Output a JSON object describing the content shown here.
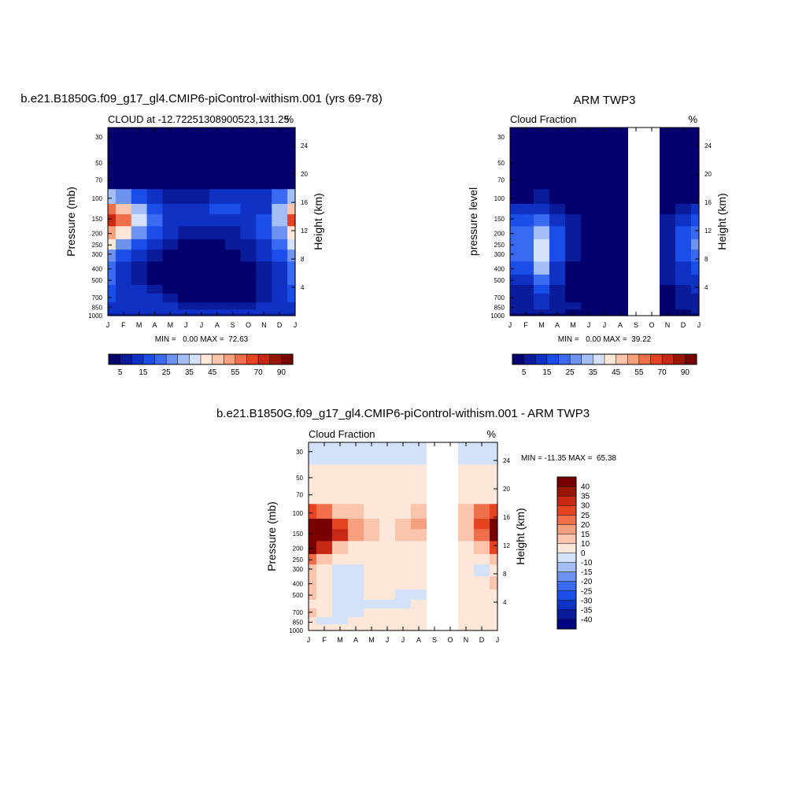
{
  "chart_data": [
    {
      "type": "heatmap",
      "title": "b.e21.B1850G.f09_g17_gl4.CMIP6-piControl-withism.001 (yrs 69-78)",
      "left_subtitle": "CLOUD at -12.72251308900523,131.25",
      "right_subtitle": "%",
      "ylabel": "Pressure (mb)",
      "ylabel_right": "Height (km)",
      "x_ticks": [
        "J",
        "F",
        "M",
        "A",
        "M",
        "J",
        "J",
        "A",
        "S",
        "O",
        "N",
        "D",
        "J"
      ],
      "y_ticks": [
        30,
        50,
        70,
        100,
        150,
        200,
        250,
        300,
        400,
        500,
        700,
        850,
        1000
      ],
      "y_ticks_right": [
        24,
        20,
        16,
        12,
        8,
        4
      ],
      "ylim": [
        1000,
        25
      ],
      "min_max_text": "MIN =   0.00 MAX =  72.63",
      "colorbar": {
        "orientation": "horizontal",
        "labels": [
          "5",
          "15",
          "25",
          "35",
          "45",
          "55",
          "70",
          "90"
        ]
      },
      "x": [
        "Jan",
        "Feb",
        "Mar",
        "Apr",
        "May",
        "Jun",
        "Jul",
        "Aug",
        "Sep",
        "Oct",
        "Nov",
        "Dec",
        "Jan"
      ],
      "y": [
        25,
        30,
        50,
        70,
        100,
        125,
        150,
        200,
        250,
        300,
        400,
        500,
        600,
        700,
        850,
        925,
        1000
      ],
      "z": [
        [
          1,
          1,
          1,
          1,
          1,
          1,
          1,
          1,
          1,
          1,
          1,
          1,
          1
        ],
        [
          1,
          1,
          1,
          1,
          1,
          1,
          1,
          1,
          1,
          1,
          1,
          1,
          1
        ],
        [
          1,
          1,
          1,
          1,
          1,
          1,
          1,
          1,
          1,
          1,
          1,
          1,
          1
        ],
        [
          2,
          2,
          2,
          2,
          2,
          2,
          2,
          2,
          2,
          2,
          2,
          2,
          2
        ],
        [
          30,
          25,
          15,
          10,
          6,
          5,
          8,
          12,
          12,
          10,
          10,
          22,
          30
        ],
        [
          58,
          45,
          30,
          18,
          12,
          10,
          12,
          15,
          15,
          14,
          14,
          30,
          48
        ],
        [
          72,
          58,
          38,
          22,
          14,
          10,
          12,
          14,
          14,
          14,
          18,
          34,
          60
        ],
        [
          54,
          44,
          28,
          16,
          10,
          8,
          8,
          9,
          9,
          12,
          16,
          28,
          44
        ],
        [
          40,
          28,
          16,
          10,
          6,
          4,
          4,
          4,
          5,
          8,
          12,
          22,
          36
        ],
        [
          28,
          18,
          10,
          6,
          3,
          2,
          2,
          2,
          3,
          6,
          10,
          18,
          28
        ],
        [
          24,
          14,
          8,
          4,
          2,
          1,
          1,
          1,
          2,
          4,
          8,
          14,
          24
        ],
        [
          20,
          12,
          8,
          4,
          2,
          1,
          1,
          1,
          1,
          3,
          6,
          12,
          20
        ],
        [
          18,
          12,
          10,
          6,
          3,
          1,
          1,
          1,
          1,
          2,
          5,
          10,
          18
        ],
        [
          16,
          14,
          12,
          10,
          6,
          2,
          1,
          1,
          1,
          3,
          6,
          10,
          16
        ],
        [
          12,
          12,
          12,
          14,
          12,
          8,
          6,
          6,
          6,
          8,
          10,
          12,
          12
        ],
        [
          10,
          10,
          10,
          12,
          12,
          12,
          10,
          10,
          10,
          10,
          10,
          10,
          10
        ],
        [
          6,
          6,
          6,
          6,
          6,
          6,
          6,
          6,
          6,
          6,
          6,
          6,
          6
        ]
      ]
    },
    {
      "type": "heatmap",
      "title": "ARM TWP3",
      "left_subtitle": "Cloud Fraction",
      "right_subtitle": "%",
      "ylabel": "pressure level",
      "ylabel_right": "Height (km)",
      "x_ticks": [
        "J",
        "F",
        "M",
        "A",
        "M",
        "J",
        "J",
        "A",
        "S",
        "O",
        "N",
        "D",
        "J"
      ],
      "y_ticks": [
        30,
        50,
        70,
        100,
        150,
        200,
        250,
        300,
        400,
        500,
        700,
        850,
        1000
      ],
      "y_ticks_right": [
        24,
        20,
        16,
        12,
        8,
        4
      ],
      "ylim": [
        1000,
        25
      ],
      "missing_months": [
        "Sep",
        "Oct"
      ],
      "min_max_text": "MIN =   0.00 MAX =  39.22",
      "colorbar": {
        "orientation": "horizontal",
        "labels": [
          "5",
          "15",
          "25",
          "35",
          "45",
          "55",
          "70",
          "90"
        ]
      },
      "x": [
        "Jan",
        "Feb",
        "Mar",
        "Apr",
        "May",
        "Jun",
        "Jul",
        "Aug",
        "Sep",
        "Oct",
        "Nov",
        "Dec",
        "Jan"
      ],
      "y": [
        25,
        30,
        50,
        70,
        100,
        125,
        150,
        200,
        250,
        300,
        400,
        500,
        600,
        700,
        850,
        925,
        1000
      ],
      "z": [
        [
          1,
          1,
          1,
          1,
          1,
          1,
          1,
          1,
          null,
          null,
          1,
          1,
          1
        ],
        [
          1,
          1,
          1,
          1,
          1,
          1,
          1,
          1,
          null,
          null,
          1,
          1,
          1
        ],
        [
          1,
          1,
          1,
          1,
          1,
          1,
          1,
          1,
          null,
          null,
          1,
          1,
          1
        ],
        [
          1,
          1,
          1,
          1,
          1,
          1,
          1,
          1,
          null,
          null,
          1,
          1,
          1
        ],
        [
          3,
          4,
          5,
          3,
          2,
          1,
          1,
          1,
          null,
          null,
          2,
          3,
          3
        ],
        [
          10,
          12,
          12,
          8,
          4,
          2,
          1,
          1,
          null,
          null,
          4,
          8,
          10
        ],
        [
          16,
          18,
          22,
          14,
          6,
          2,
          1,
          1,
          null,
          null,
          6,
          12,
          16
        ],
        [
          20,
          22,
          34,
          18,
          8,
          3,
          2,
          2,
          null,
          null,
          8,
          16,
          22
        ],
        [
          22,
          22,
          39,
          18,
          8,
          3,
          2,
          2,
          null,
          null,
          8,
          18,
          26
        ],
        [
          20,
          20,
          36,
          16,
          6,
          3,
          2,
          2,
          null,
          null,
          8,
          18,
          24
        ],
        [
          16,
          16,
          30,
          12,
          4,
          2,
          1,
          1,
          null,
          null,
          6,
          14,
          18
        ],
        [
          12,
          12,
          24,
          10,
          3,
          1,
          1,
          1,
          null,
          null,
          5,
          10,
          14
        ],
        [
          8,
          8,
          18,
          8,
          2,
          1,
          1,
          1,
          null,
          null,
          4,
          8,
          10
        ],
        [
          6,
          6,
          14,
          6,
          3,
          2,
          2,
          1,
          null,
          null,
          3,
          6,
          8
        ],
        [
          8,
          8,
          10,
          6,
          6,
          4,
          2,
          1,
          null,
          null,
          3,
          5,
          8
        ],
        [
          6,
          6,
          6,
          5,
          4,
          3,
          2,
          1,
          null,
          null,
          3,
          4,
          6
        ],
        [
          3,
          3,
          3,
          3,
          3,
          2,
          1,
          1,
          null,
          null,
          2,
          3,
          3
        ]
      ]
    },
    {
      "type": "heatmap",
      "title": "b.e21.B1850G.f09_g17_gl4.CMIP6-piControl-withism.001 - ARM TWP3",
      "left_subtitle": "Cloud Fraction",
      "right_subtitle": "%",
      "ylabel": "Pressure (mb)",
      "ylabel_right": "Height (km)",
      "x_ticks": [
        "J",
        "F",
        "M",
        "A",
        "M",
        "J",
        "J",
        "A",
        "S",
        "O",
        "N",
        "D",
        "J"
      ],
      "y_ticks": [
        30,
        50,
        70,
        100,
        150,
        200,
        250,
        300,
        400,
        500,
        700,
        850,
        1000
      ],
      "y_ticks_right": [
        24,
        20,
        16,
        12,
        8,
        4
      ],
      "ylim": [
        1000,
        25
      ],
      "missing_months": [
        "Sep",
        "Oct"
      ],
      "min_max_text": "MIN = -11.35 MAX =  65.38",
      "colorbar": {
        "orientation": "vertical",
        "labels": [
          "40",
          "35",
          "30",
          "25",
          "20",
          "15",
          "10",
          "0",
          "-10",
          "-15",
          "-20",
          "-25",
          "-30",
          "-35",
          "-40"
        ]
      },
      "x": [
        "Jan",
        "Feb",
        "Mar",
        "Apr",
        "May",
        "Jun",
        "Jul",
        "Aug",
        "Sep",
        "Oct",
        "Nov",
        "Dec",
        "Jan"
      ],
      "y": [
        25,
        30,
        50,
        70,
        100,
        125,
        150,
        200,
        250,
        300,
        400,
        500,
        600,
        700,
        850,
        925,
        1000
      ],
      "z": [
        [
          -2,
          -2,
          -2,
          -2,
          -2,
          -2,
          -2,
          -2,
          null,
          null,
          -2,
          -2,
          -2
        ],
        [
          -2,
          -2,
          -2,
          -2,
          -2,
          -2,
          -2,
          -2,
          null,
          null,
          -2,
          -2,
          -2
        ],
        [
          2,
          2,
          2,
          2,
          2,
          2,
          2,
          2,
          null,
          null,
          2,
          2,
          2
        ],
        [
          4,
          4,
          4,
          4,
          4,
          4,
          4,
          4,
          null,
          null,
          4,
          4,
          4
        ],
        [
          28,
          24,
          14,
          10,
          6,
          4,
          7,
          11,
          null,
          null,
          10,
          20,
          28
        ],
        [
          50,
          40,
          26,
          16,
          10,
          9,
          14,
          18,
          null,
          null,
          14,
          28,
          42
        ],
        [
          60,
          48,
          30,
          16,
          10,
          9,
          12,
          14,
          null,
          null,
          14,
          24,
          48
        ],
        [
          44,
          32,
          12,
          8,
          6,
          5,
          5,
          6,
          null,
          null,
          8,
          14,
          28
        ],
        [
          22,
          10,
          4,
          3,
          2,
          2,
          2,
          2,
          null,
          null,
          2,
          6,
          12
        ],
        [
          10,
          4,
          -2,
          -2,
          2,
          2,
          2,
          2,
          null,
          null,
          2,
          -2,
          6
        ],
        [
          12,
          3,
          -2,
          -2,
          2,
          2,
          2,
          2,
          null,
          null,
          2,
          4,
          10
        ],
        [
          10,
          2,
          -2,
          -3,
          2,
          1,
          -2,
          -3,
          null,
          null,
          2,
          4,
          8
        ],
        [
          8,
          2,
          -2,
          -2,
          -3,
          -3,
          -2,
          2,
          null,
          null,
          2,
          4,
          8
        ],
        [
          12,
          3,
          -2,
          -2,
          3,
          2,
          2,
          2,
          null,
          null,
          4,
          6,
          8
        ],
        [
          4,
          -2,
          -2,
          2,
          4,
          4,
          4,
          6,
          null,
          null,
          6,
          8,
          4
        ],
        [
          2,
          2,
          2,
          4,
          6,
          6,
          6,
          6,
          null,
          null,
          6,
          4,
          2
        ],
        [
          2,
          2,
          2,
          2,
          2,
          2,
          2,
          2,
          null,
          null,
          2,
          2,
          2
        ]
      ]
    }
  ]
}
